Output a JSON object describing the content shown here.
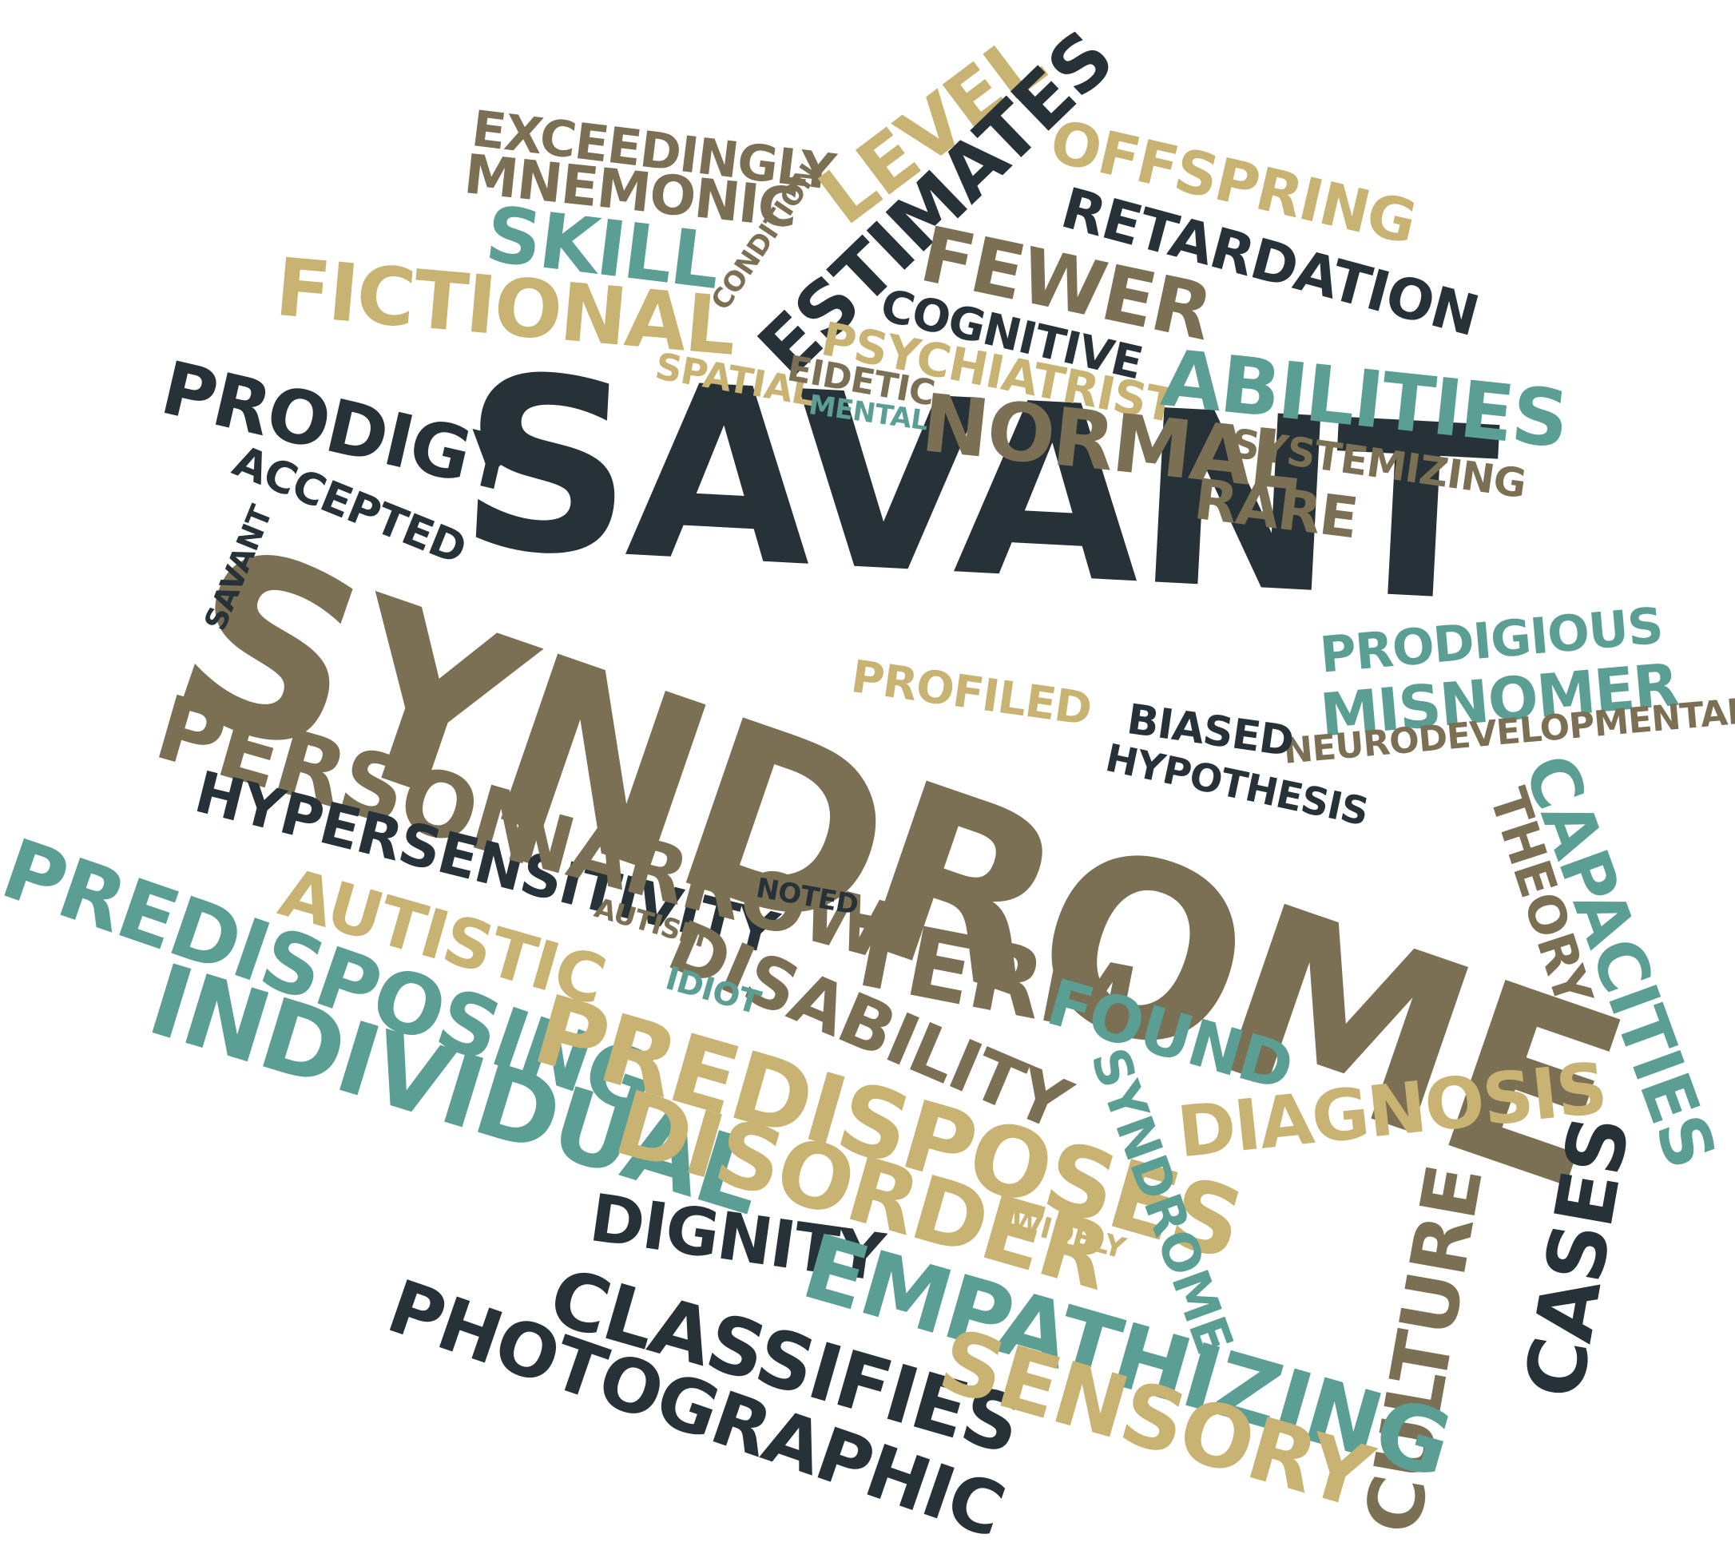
{
  "colors": {
    "dark": "#263238",
    "brown": "#7b6f54",
    "gold": "#c8b373",
    "teal": "#5a9e94",
    "background": "#ffffff"
  },
  "words": {
    "savant_main": "SAVANT",
    "syndrome_main": "SYNDROME",
    "exceedingly": "EXCEEDINGLY",
    "mnemonic": "MNEMONIC",
    "level": "LEVEL",
    "estimates": "ESTIMATES",
    "condition": "CONDITION",
    "offspring": "OFFSPRING",
    "retardation": "RETARDATION",
    "skill": "SKILL",
    "fewer": "FEWER",
    "fictional": "FICTIONAL",
    "cognitive": "COGNITIVE",
    "psychiatrist": "PSYCHIATRIST",
    "abilities": "ABILITIES",
    "spatial": "SPATIAL",
    "eidetic": "EIDETIC",
    "mental": "MENTAL",
    "prodigy": "PRODIGY",
    "normal": "NORMAL",
    "systemizing": "SYSTEMIZING",
    "accepted": "ACCEPTED",
    "rare": "RARE",
    "savant_small": "SAVANT",
    "prodigious": "PRODIGIOUS",
    "misnomer": "MISNOMER",
    "profiled": "PROFILED",
    "neurodevelopmental": "NEURODEVELOPMENTAL",
    "person": "PERSON",
    "biased": "BIASED",
    "hypothesis": "HYPOTHESIS",
    "capacities": "CAPACITIES",
    "theory": "THEORY",
    "hypersensitivity": "HYPERSENSITIVITY",
    "narrow": "NARROW",
    "predisposing": "PREDISPOSING",
    "autistic": "AUTISTIC",
    "autism": "AUTISM",
    "noted": "NOTED",
    "disability": "DISABILITY",
    "term": "TERM",
    "idiot": "IDIOT",
    "individual": "INDIVIDUAL",
    "predisposes": "PREDISPOSES",
    "found": "FOUND",
    "syndrome_small": "SYNDROME",
    "diagnosis": "DIAGNOSIS",
    "disorder": "DISORDER",
    "widely": "WIDELY",
    "culture": "CULTURE",
    "cases": "CASES",
    "dignity": "DIGNITY",
    "empathizing": "EMPATHIZING",
    "classifies": "CLASSIFIES",
    "photographic": "PHOTOGRAPHIC",
    "sensory": "SENSORY"
  }
}
